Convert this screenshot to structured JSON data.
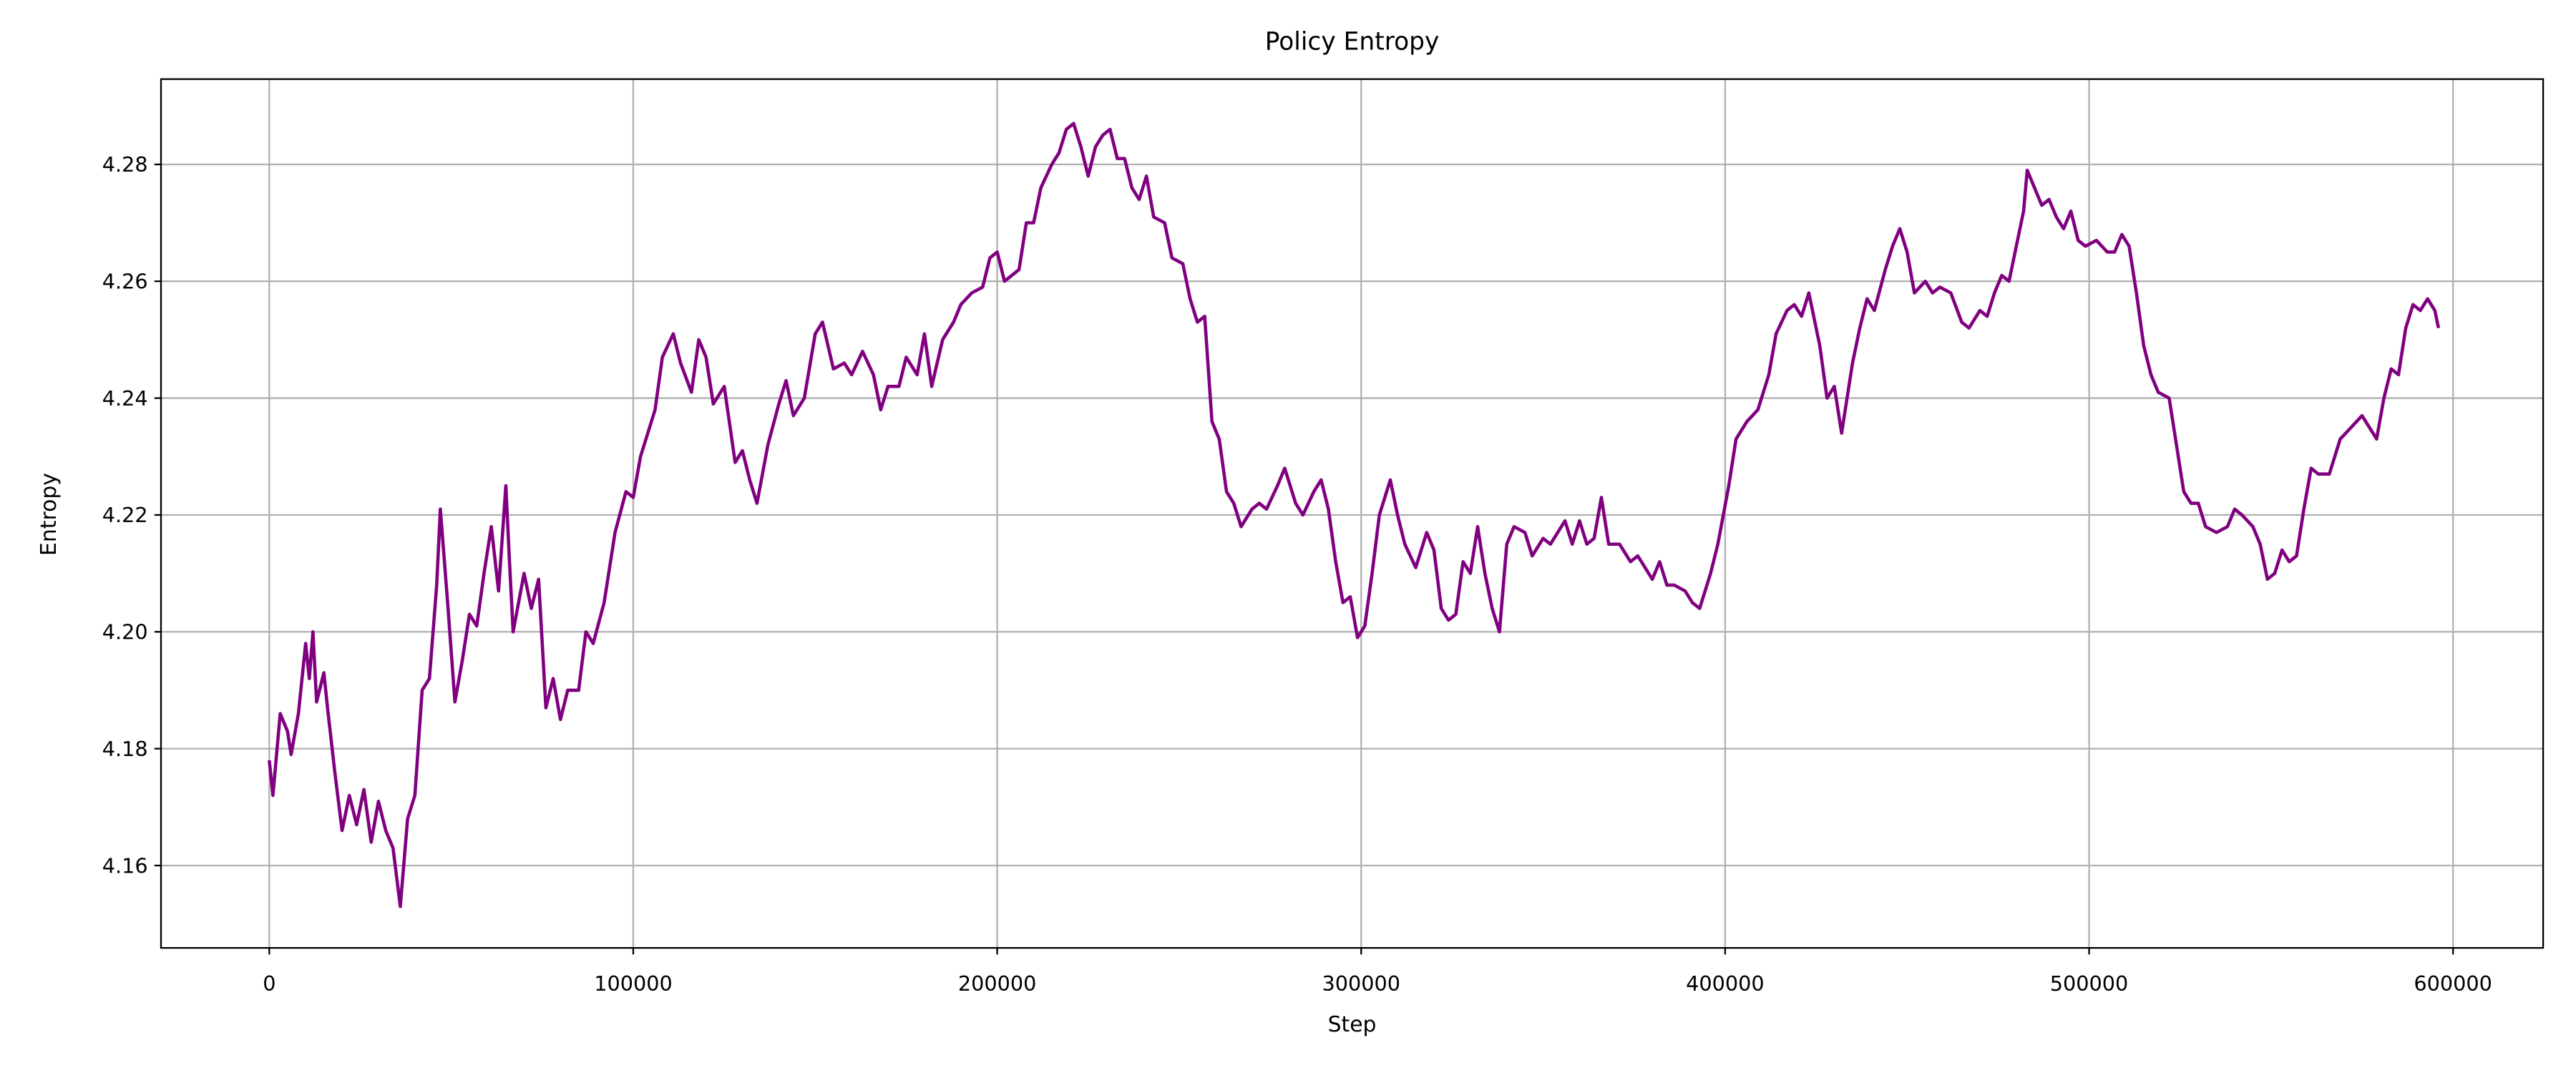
{
  "chart_data": {
    "type": "line",
    "title": "Policy Entropy",
    "x_label": "Step",
    "y_label": "Entropy",
    "x": [
      0,
      1000,
      3000,
      5000,
      6000,
      8000,
      10000,
      11000,
      12000,
      13000,
      15000,
      16000,
      18000,
      20000,
      22000,
      24000,
      26000,
      28000,
      30000,
      32000,
      34000,
      36000,
      38000,
      40000,
      42000,
      44000,
      46000,
      47000,
      49000,
      51000,
      53000,
      55000,
      57000,
      59000,
      61000,
      63000,
      65000,
      66000,
      67000,
      70000,
      72000,
      74000,
      76000,
      78000,
      80000,
      82000,
      85000,
      87000,
      89000,
      92000,
      95000,
      98000,
      100000,
      102000,
      106000,
      108000,
      111000,
      113000,
      116000,
      118000,
      120000,
      122000,
      125000,
      128000,
      130000,
      132000,
      134000,
      137000,
      140000,
      142000,
      144000,
      147000,
      150000,
      152000,
      155000,
      158000,
      160000,
      163000,
      166000,
      168000,
      170000,
      173000,
      175000,
      178000,
      180000,
      182000,
      185000,
      188000,
      190000,
      193000,
      196000,
      198000,
      200000,
      202000,
      206000,
      208000,
      210000,
      212000,
      215000,
      217000,
      219000,
      221000,
      223000,
      225000,
      227000,
      229000,
      231000,
      233000,
      235000,
      237000,
      239000,
      241000,
      243000,
      246000,
      248000,
      251000,
      253000,
      255000,
      257000,
      259000,
      261000,
      263000,
      265000,
      267000,
      270000,
      272000,
      274000,
      277000,
      279000,
      282000,
      284000,
      287000,
      289000,
      291000,
      293000,
      295000,
      297000,
      299000,
      301000,
      303000,
      305000,
      308000,
      310000,
      312000,
      315000,
      318000,
      320000,
      322000,
      324000,
      326000,
      328000,
      330000,
      332000,
      334000,
      336000,
      338000,
      340000,
      342000,
      345000,
      347000,
      350000,
      352000,
      356000,
      358000,
      360000,
      362000,
      364000,
      366000,
      368000,
      371000,
      374000,
      376000,
      378000,
      380000,
      382000,
      384000,
      386000,
      389000,
      391000,
      393000,
      396000,
      398000,
      401000,
      403000,
      406000,
      409000,
      412000,
      414000,
      417000,
      419000,
      421000,
      423000,
      426000,
      428000,
      430000,
      432000,
      435000,
      437000,
      439000,
      441000,
      444000,
      446000,
      448000,
      450000,
      452000,
      455000,
      457000,
      459000,
      462000,
      465000,
      467000,
      470000,
      472000,
      474000,
      476000,
      478000,
      480000,
      482000,
      483000,
      485000,
      487000,
      489000,
      491000,
      493000,
      495000,
      497000,
      499000,
      502000,
      505000,
      507000,
      509000,
      511000,
      513000,
      515000,
      517000,
      519000,
      522000,
      524000,
      526000,
      528000,
      530000,
      532000,
      535000,
      538000,
      540000,
      542000,
      545000,
      547000,
      549000,
      551000,
      553000,
      555000,
      557000,
      559000,
      561000,
      563000,
      566000,
      569000,
      572000,
      575000,
      577000,
      579000,
      581000,
      583000,
      585000,
      587000,
      589000,
      591000,
      593000,
      595000,
      596000
    ],
    "series": [
      {
        "name": "Entropy",
        "color": "#800080",
        "values": [
          4.178,
          4.172,
          4.186,
          4.183,
          4.179,
          4.186,
          4.198,
          4.192,
          4.2,
          4.188,
          4.193,
          4.187,
          4.176,
          4.166,
          4.172,
          4.167,
          4.173,
          4.164,
          4.171,
          4.166,
          4.163,
          4.153,
          4.168,
          4.172,
          4.19,
          4.192,
          4.208,
          4.221,
          4.205,
          4.188,
          4.195,
          4.203,
          4.201,
          4.21,
          4.218,
          4.207,
          4.225,
          4.212,
          4.2,
          4.21,
          4.204,
          4.209,
          4.187,
          4.192,
          4.185,
          4.19,
          4.19,
          4.2,
          4.198,
          4.205,
          4.217,
          4.224,
          4.223,
          4.23,
          4.238,
          4.247,
          4.251,
          4.246,
          4.241,
          4.25,
          4.247,
          4.239,
          4.242,
          4.229,
          4.231,
          4.226,
          4.222,
          4.232,
          4.239,
          4.243,
          4.237,
          4.24,
          4.251,
          4.253,
          4.245,
          4.246,
          4.244,
          4.248,
          4.244,
          4.238,
          4.242,
          4.242,
          4.247,
          4.244,
          4.251,
          4.242,
          4.25,
          4.253,
          4.256,
          4.258,
          4.259,
          4.264,
          4.265,
          4.26,
          4.262,
          4.27,
          4.27,
          4.276,
          4.28,
          4.282,
          4.286,
          4.287,
          4.283,
          4.278,
          4.283,
          4.285,
          4.286,
          4.281,
          4.281,
          4.276,
          4.274,
          4.278,
          4.271,
          4.27,
          4.264,
          4.263,
          4.257,
          4.253,
          4.254,
          4.236,
          4.233,
          4.224,
          4.222,
          4.218,
          4.221,
          4.222,
          4.221,
          4.225,
          4.228,
          4.222,
          4.22,
          4.224,
          4.226,
          4.221,
          4.212,
          4.205,
          4.206,
          4.199,
          4.201,
          4.21,
          4.22,
          4.226,
          4.22,
          4.215,
          4.211,
          4.217,
          4.214,
          4.204,
          4.202,
          4.203,
          4.212,
          4.21,
          4.218,
          4.21,
          4.204,
          4.2,
          4.215,
          4.218,
          4.217,
          4.213,
          4.216,
          4.215,
          4.219,
          4.215,
          4.219,
          4.215,
          4.216,
          4.223,
          4.215,
          4.215,
          4.212,
          4.213,
          4.211,
          4.209,
          4.212,
          4.208,
          4.208,
          4.207,
          4.205,
          4.204,
          4.21,
          4.215,
          4.225,
          4.233,
          4.236,
          4.238,
          4.244,
          4.251,
          4.255,
          4.256,
          4.254,
          4.258,
          4.249,
          4.24,
          4.242,
          4.234,
          4.246,
          4.252,
          4.257,
          4.255,
          4.262,
          4.266,
          4.269,
          4.265,
          4.258,
          4.26,
          4.258,
          4.259,
          4.258,
          4.253,
          4.252,
          4.255,
          4.254,
          4.258,
          4.261,
          4.26,
          4.266,
          4.272,
          4.279,
          4.276,
          4.273,
          4.274,
          4.271,
          4.269,
          4.272,
          4.267,
          4.266,
          4.267,
          4.265,
          4.265,
          4.268,
          4.266,
          4.258,
          4.249,
          4.244,
          4.241,
          4.24,
          4.232,
          4.224,
          4.222,
          4.222,
          4.218,
          4.217,
          4.218,
          4.221,
          4.22,
          4.218,
          4.215,
          4.209,
          4.21,
          4.214,
          4.212,
          4.213,
          4.221,
          4.228,
          4.227,
          4.227,
          4.233,
          4.235,
          4.237,
          4.235,
          4.233,
          4.24,
          4.245,
          4.244,
          4.252,
          4.256,
          4.255,
          4.257,
          4.255,
          4.252
        ]
      }
    ],
    "xlim": [
      -29750,
      624750
    ],
    "xticks": [
      0,
      100000,
      200000,
      300000,
      400000,
      500000,
      600000
    ],
    "ylim": [
      4.1459,
      4.2946
    ],
    "yticks": [
      4.16,
      4.18,
      {
        "value": 4.2,
        "label": "4.20"
      },
      4.22,
      4.24,
      4.26,
      4.28
    ],
    "grid": true
  }
}
